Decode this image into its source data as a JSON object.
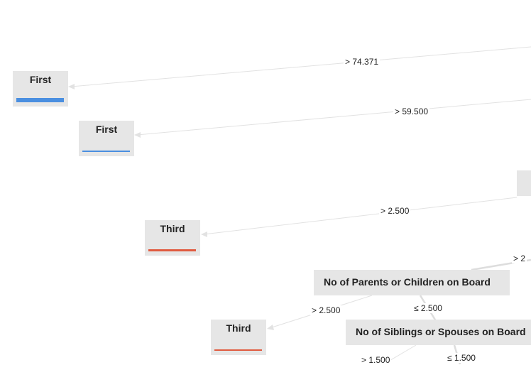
{
  "colors": {
    "first": "#4a8fe0",
    "third": "#e05a3f",
    "node_bg": "#e6e6e6",
    "edge": "#e2e2e2"
  },
  "leaves": [
    {
      "class": "First",
      "color": "#4a8fe0",
      "bar_fraction": 0.92,
      "bar_weight": "heavy"
    },
    {
      "class": "First",
      "color": "#4a8fe0",
      "bar_fraction": 0.92,
      "bar_weight": "thin"
    },
    {
      "class": "Third",
      "color": "#e05a3f",
      "bar_fraction": 0.92,
      "bar_weight": "medium"
    },
    {
      "class": "Third",
      "color": "#e05a3f",
      "bar_fraction": 0.92,
      "bar_weight": "thin"
    }
  ],
  "splits": [
    {
      "label": "No of Parents or Children on Board"
    },
    {
      "label": "No of Siblings or Spouses on Board"
    }
  ],
  "edge_labels": [
    "> 74.371",
    "> 59.500",
    "> 2.500",
    "> 2",
    "> 2.500",
    "≤ 2.500",
    "> 1.500",
    "≤ 1.500"
  ]
}
